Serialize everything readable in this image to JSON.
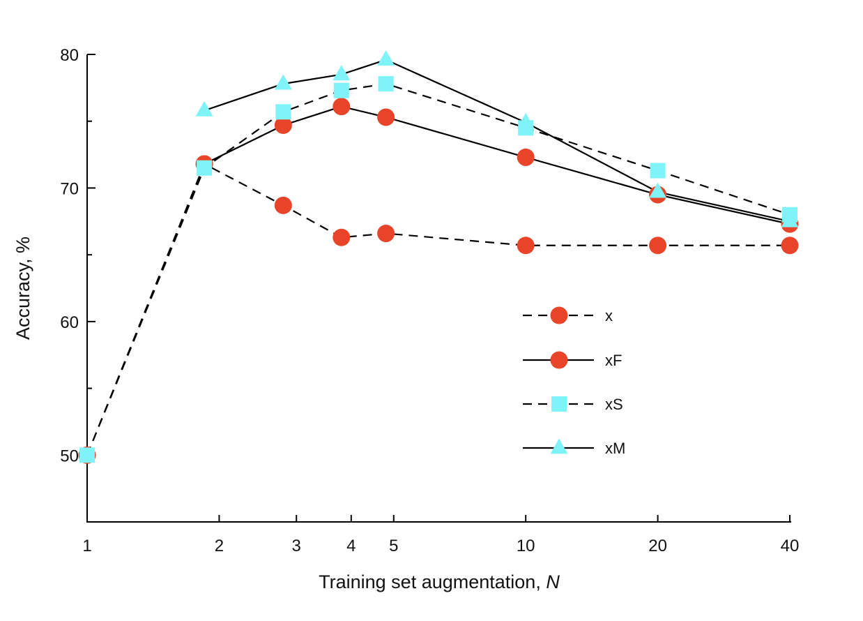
{
  "chart_data": {
    "type": "line",
    "xlabel_text": "Training set augmentation, ",
    "xlabel_var": "N",
    "ylabel": "Accuracy, %",
    "x_scale": "log",
    "xlim": [
      1,
      40
    ],
    "ylim": [
      45,
      80
    ],
    "x_ticks": [
      1,
      2,
      3,
      4,
      5,
      10,
      20,
      40
    ],
    "x_tick_labels": [
      "1",
      "2",
      "3",
      "4",
      "5",
      "10",
      "20",
      "40"
    ],
    "y_major_ticks": [
      50,
      60,
      70,
      80
    ],
    "y_tick_labels": [
      "50",
      "60",
      "70",
      "80"
    ],
    "y_minor_ticks": [
      55,
      65,
      75
    ],
    "grid": false,
    "legend_position": "center-right",
    "series": [
      {
        "name": "x",
        "line": "dashed",
        "marker": "circle",
        "color": "#e8442a",
        "points": [
          [
            1,
            50.0
          ],
          [
            1.85,
            71.8
          ],
          [
            2.8,
            68.7
          ],
          [
            3.8,
            66.3
          ],
          [
            4.8,
            66.6
          ],
          [
            10,
            65.7
          ],
          [
            20,
            65.7
          ],
          [
            40,
            65.7
          ]
        ]
      },
      {
        "name": "xF",
        "line": "solid",
        "marker": "circle",
        "color": "#e8442a",
        "points": [
          [
            1.85,
            71.8
          ],
          [
            2.8,
            74.7
          ],
          [
            3.8,
            76.1
          ],
          [
            4.8,
            75.3
          ],
          [
            10,
            72.3
          ],
          [
            20,
            69.5
          ],
          [
            40,
            67.3
          ]
        ]
      },
      {
        "name": "xS",
        "line": "dashed",
        "marker": "square",
        "color": "#7ff3f7",
        "points": [
          [
            1,
            50.0
          ],
          [
            1.85,
            71.5
          ],
          [
            2.8,
            75.7
          ],
          [
            3.8,
            77.3
          ],
          [
            4.8,
            77.8
          ],
          [
            10,
            74.5
          ],
          [
            20,
            71.3
          ],
          [
            40,
            68.0
          ]
        ]
      },
      {
        "name": "xM",
        "line": "solid",
        "marker": "triangle",
        "color": "#7ff3f7",
        "points": [
          [
            1.85,
            75.8
          ],
          [
            2.8,
            77.8
          ],
          [
            3.8,
            78.5
          ],
          [
            4.8,
            79.6
          ],
          [
            10,
            74.9
          ],
          [
            20,
            69.7
          ],
          [
            40,
            67.5
          ]
        ]
      }
    ]
  }
}
